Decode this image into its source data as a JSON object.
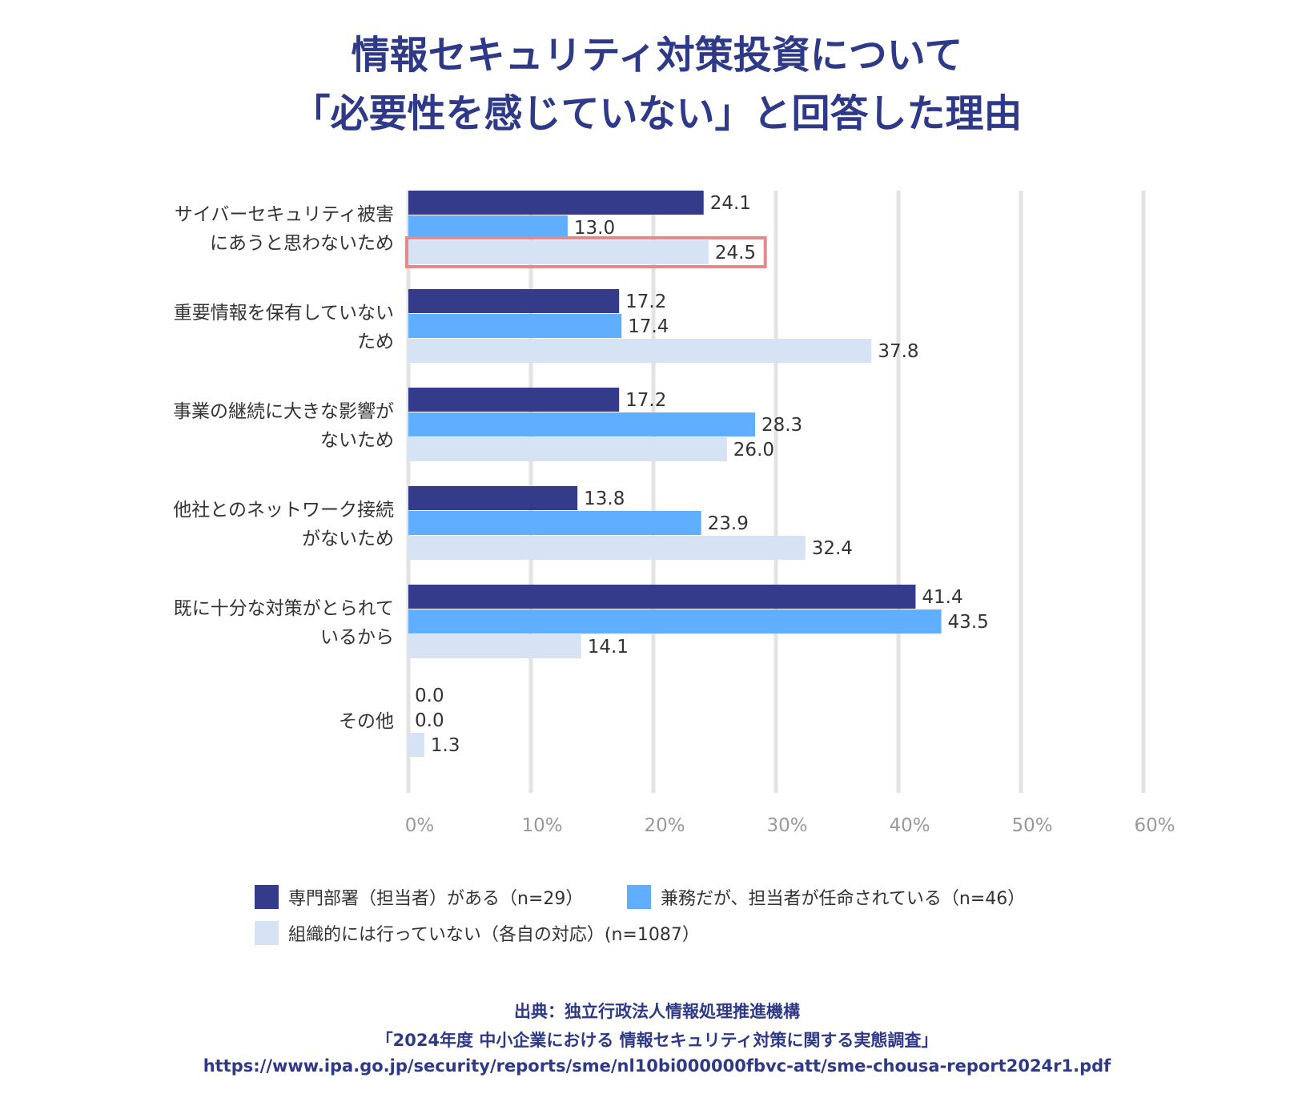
{
  "title": {
    "line1": "情報セキュリティ対策投資について",
    "line2": "「必要性を感じていない」と回答した理由"
  },
  "colors": {
    "series1": "#333b8a",
    "series2": "#60aeff",
    "series3": "#d5e3f4",
    "grid": "#e3e3e3",
    "highlight": "#e58a8a",
    "title": "#2e3a87"
  },
  "chart_data": {
    "type": "bar",
    "orientation": "horizontal",
    "title": "情報セキュリティ対策投資について「必要性を感じていない」と回答した理由",
    "categories": [
      [
        "サイバーセキュリティ被害",
        "にあうと思わないため"
      ],
      [
        "重要情報を保有していない",
        "ため"
      ],
      [
        "事業の継続に大きな影響が",
        "ないため"
      ],
      [
        "他社とのネットワーク接続",
        "がないため"
      ],
      [
        "既に十分な対策がとられて",
        "いるから"
      ],
      [
        "その他"
      ]
    ],
    "series": [
      {
        "name": "専門部署（担当者）がある（n=29）",
        "values": [
          24.1,
          17.2,
          17.2,
          13.8,
          41.4,
          0.0
        ]
      },
      {
        "name": "兼務だが、担当者が任命されている（n=46）",
        "values": [
          13.0,
          17.4,
          28.3,
          23.9,
          43.5,
          0.0
        ]
      },
      {
        "name": "組織的には行っていない（各自の対応）(n=1087）",
        "values": [
          24.5,
          37.8,
          26.0,
          32.4,
          14.1,
          1.3
        ]
      }
    ],
    "xlim": [
      0,
      60
    ],
    "xticks": [
      "0%",
      "10%",
      "20%",
      "30%",
      "40%",
      "50%",
      "60%"
    ],
    "grid": true,
    "legend_position": "bottom",
    "highlight": {
      "category_index": 0,
      "series_index": 2
    }
  },
  "source": {
    "line1": "出典：独立行政法人情報処理推進機構",
    "line2": "「2024年度 中小企業における 情報セキュリティ対策に関する実態調査」",
    "line3": "https://www.ipa.go.jp/security/reports/sme/nl10bi000000fbvc-att/sme-chousa-report2024r1.pdf"
  }
}
